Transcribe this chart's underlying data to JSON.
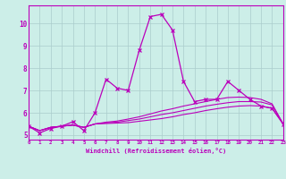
{
  "xlabel": "Windchill (Refroidissement éolien,°C)",
  "ylabel": "",
  "background_color": "#cceee8",
  "line_color": "#bb00bb",
  "grid_color": "#aacccc",
  "x_values": [
    0,
    1,
    2,
    3,
    4,
    5,
    6,
    7,
    8,
    9,
    10,
    11,
    12,
    13,
    14,
    15,
    16,
    17,
    18,
    19,
    20,
    21,
    22,
    23
  ],
  "series1": [
    5.4,
    5.1,
    5.3,
    5.4,
    5.6,
    5.2,
    6.0,
    7.5,
    7.1,
    7.0,
    8.8,
    10.3,
    10.4,
    9.7,
    7.4,
    6.5,
    6.6,
    6.6,
    7.4,
    7.0,
    6.6,
    6.3,
    6.2,
    5.5
  ],
  "series2": [
    5.4,
    5.2,
    5.35,
    5.4,
    5.45,
    5.35,
    5.5,
    5.52,
    5.54,
    5.56,
    5.62,
    5.68,
    5.74,
    5.82,
    5.92,
    6.0,
    6.1,
    6.18,
    6.25,
    6.3,
    6.32,
    6.3,
    6.2,
    5.5
  ],
  "series3": [
    5.4,
    5.2,
    5.35,
    5.4,
    5.45,
    5.35,
    5.5,
    5.55,
    5.58,
    5.65,
    5.72,
    5.82,
    5.92,
    6.0,
    6.1,
    6.2,
    6.3,
    6.38,
    6.45,
    6.5,
    6.5,
    6.48,
    6.35,
    5.5
  ],
  "series4": [
    5.4,
    5.2,
    5.35,
    5.4,
    5.45,
    5.35,
    5.5,
    5.58,
    5.63,
    5.72,
    5.82,
    5.95,
    6.08,
    6.18,
    6.3,
    6.4,
    6.5,
    6.6,
    6.68,
    6.7,
    6.68,
    6.6,
    6.4,
    5.5
  ],
  "xlim": [
    0,
    23
  ],
  "ylim": [
    4.8,
    10.8
  ],
  "yticks": [
    5,
    6,
    7,
    8,
    9,
    10
  ],
  "xticks": [
    0,
    1,
    2,
    3,
    4,
    5,
    6,
    7,
    8,
    9,
    10,
    11,
    12,
    13,
    14,
    15,
    16,
    17,
    18,
    19,
    20,
    21,
    22,
    23
  ]
}
